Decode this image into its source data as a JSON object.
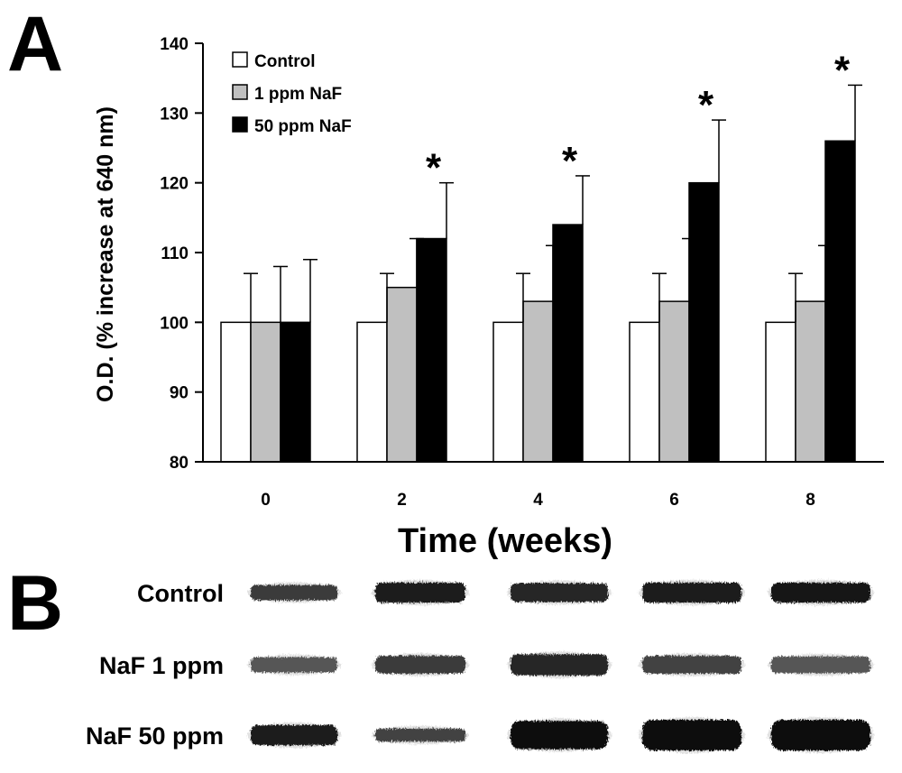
{
  "panel_a_label": "A",
  "panel_b_label": "B",
  "chart_data": {
    "type": "bar",
    "title": "",
    "xlabel": "Time (weeks)",
    "ylabel": "O.D. (% increase at 640 nm)",
    "ylim": [
      80,
      140
    ],
    "yticks": [
      80,
      90,
      100,
      110,
      120,
      130,
      140
    ],
    "categories": [
      "0",
      "2",
      "4",
      "6",
      "8"
    ],
    "series": [
      {
        "name": "Control",
        "color": "#ffffff",
        "values": [
          100,
          100,
          100,
          100,
          100
        ],
        "errors": [
          7,
          7,
          7,
          7,
          7
        ]
      },
      {
        "name": "1 ppm NaF",
        "color": "#c0c0c0",
        "values": [
          100,
          105,
          103,
          103,
          103
        ],
        "errors": [
          8,
          7,
          8,
          9,
          8
        ]
      },
      {
        "name": "50 ppm NaF",
        "color": "#000000",
        "values": [
          100,
          112,
          114,
          120,
          126
        ],
        "errors": [
          9,
          8,
          7,
          9,
          8
        ]
      }
    ],
    "significance": [
      "",
      "*",
      "*",
      "*",
      "*"
    ],
    "legend_position": "top-left"
  },
  "blot": {
    "rows": [
      {
        "label": "Control"
      },
      {
        "label": "NaF 1 ppm"
      },
      {
        "label": "NaF 50 ppm"
      }
    ],
    "band_thickness": [
      [
        0.35,
        0.55,
        0.5,
        0.55,
        0.55
      ],
      [
        0.35,
        0.45,
        0.6,
        0.45,
        0.4
      ],
      [
        0.55,
        0.25,
        0.9,
        1.0,
        1.0
      ]
    ],
    "band_darkness": [
      [
        0.75,
        0.9,
        0.85,
        0.9,
        0.95
      ],
      [
        0.6,
        0.75,
        0.85,
        0.7,
        0.6
      ],
      [
        0.9,
        0.7,
        1.0,
        1.0,
        1.0
      ]
    ]
  }
}
